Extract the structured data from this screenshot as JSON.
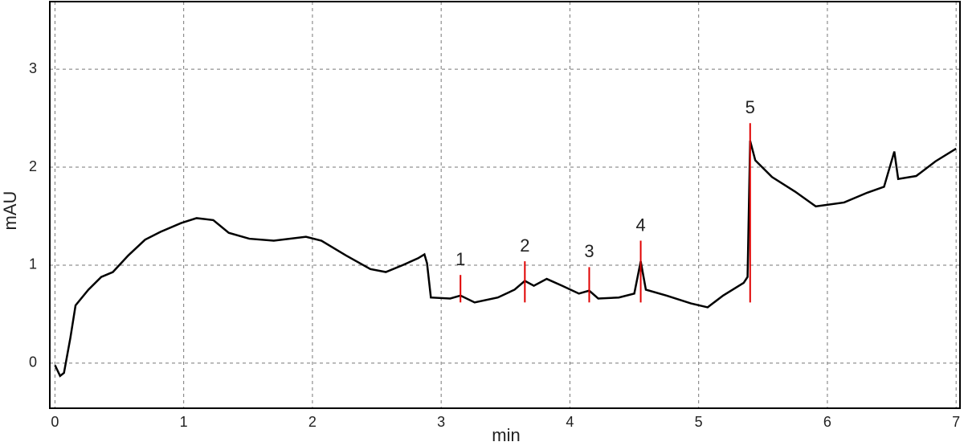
{
  "chart_data": {
    "type": "line",
    "xlabel": "min",
    "ylabel": "mAU",
    "x": [
      0,
      0.04,
      0.07,
      0.12,
      0.16,
      0.26,
      0.36,
      0.45,
      0.57,
      0.7,
      0.82,
      0.98,
      1.1,
      1.23,
      1.35,
      1.51,
      1.7,
      1.95,
      2.07,
      2.26,
      2.45,
      2.57,
      2.7,
      2.82,
      2.87,
      2.89,
      2.92,
      3.07,
      3.15,
      3.26,
      3.44,
      3.57,
      3.65,
      3.72,
      3.82,
      3.94,
      4.07,
      4.15,
      4.22,
      4.38,
      4.5,
      4.55,
      4.59,
      4.75,
      4.94,
      5.07,
      5.19,
      5.35,
      5.38,
      5.4,
      5.44,
      5.57,
      5.75,
      5.91,
      6.13,
      6.31,
      6.44,
      6.52,
      6.55,
      6.69,
      6.84,
      7.0
    ],
    "series": [
      {
        "color": "#000000",
        "values": [
          -0.02,
          -0.13,
          -0.1,
          0.26,
          0.59,
          0.75,
          0.88,
          0.93,
          1.1,
          1.26,
          1.34,
          1.43,
          1.48,
          1.46,
          1.33,
          1.27,
          1.25,
          1.29,
          1.25,
          1.1,
          0.96,
          0.93,
          1.0,
          1.07,
          1.11,
          1.02,
          0.67,
          0.66,
          0.69,
          0.62,
          0.67,
          0.75,
          0.84,
          0.79,
          0.86,
          0.79,
          0.71,
          0.74,
          0.66,
          0.67,
          0.71,
          1.04,
          0.75,
          0.69,
          0.61,
          0.57,
          0.69,
          0.82,
          0.88,
          2.27,
          2.07,
          1.9,
          1.75,
          1.6,
          1.64,
          1.74,
          1.8,
          2.16,
          1.88,
          1.91,
          2.06,
          2.19
        ]
      }
    ],
    "peaks": [
      {
        "label": "1",
        "x": 3.15,
        "y": 0.9
      },
      {
        "label": "2",
        "x": 3.65,
        "y": 1.04
      },
      {
        "label": "3",
        "x": 4.15,
        "y": 0.98
      },
      {
        "label": "4",
        "x": 4.55,
        "y": 1.25
      },
      {
        "label": "5",
        "x": 5.4,
        "y": 2.45
      }
    ],
    "peak_color": "#e00000",
    "xlim": [
      -0.04,
      7.03
    ],
    "ylim": [
      -0.46,
      3.69
    ],
    "xticks": [
      0,
      1,
      2,
      3,
      4,
      5,
      6,
      7
    ],
    "yticks": [
      0,
      1,
      2,
      3
    ],
    "grid": true
  }
}
